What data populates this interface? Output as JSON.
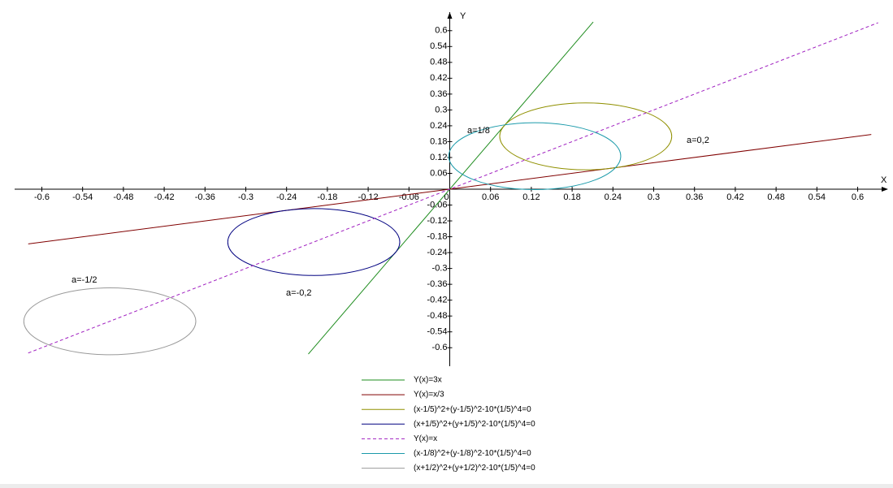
{
  "chart_data": {
    "type": "line",
    "x_label": "X",
    "y_label": "Y",
    "xlim": [
      -0.64,
      0.64
    ],
    "ylim": [
      -0.67,
      0.67
    ],
    "xticks": [
      -0.6,
      -0.54,
      -0.48,
      -0.42,
      -0.36,
      -0.3,
      -0.24,
      -0.18,
      -0.12,
      -0.06,
      0,
      0.06,
      0.12,
      0.18,
      0.24,
      0.3,
      0.36,
      0.42,
      0.48,
      0.54,
      0.6
    ],
    "yticks": [
      -0.6,
      -0.54,
      -0.48,
      -0.42,
      -0.36,
      -0.3,
      -0.24,
      -0.18,
      -0.12,
      -0.06,
      0.06,
      0.12,
      0.18,
      0.24,
      0.3,
      0.36,
      0.42,
      0.48,
      0.54,
      0.6
    ],
    "grid": false,
    "series": [
      {
        "name": "Y(x)=3x",
        "color": "#1e8c1e",
        "kind": "line",
        "x": [
          -0.208,
          0.211
        ],
        "values": [
          -0.624,
          0.633
        ]
      },
      {
        "name": "Y(x)=x/3",
        "color": "#800000",
        "kind": "line",
        "x": [
          -0.62,
          0.62
        ],
        "values": [
          -0.207,
          0.207
        ]
      },
      {
        "name": "(x-1/5)^2+(y-1/5)^2-10*(1/5)^4=0",
        "color": "#909000",
        "kind": "circle",
        "center": [
          0.2,
          0.2
        ],
        "r": 0.1265,
        "annotation": "a=0,2"
      },
      {
        "name": "(x+1/5)^2+(y+1/5)^2-10*(1/5)^4=0",
        "color": "#000080",
        "kind": "circle",
        "center": [
          -0.2,
          -0.2
        ],
        "r": 0.1265,
        "annotation": "a=-0,2"
      },
      {
        "name": "Y(x)=x",
        "color": "#a020c0",
        "kind": "line",
        "dashed": true,
        "x": [
          -0.62,
          0.63
        ],
        "values": [
          -0.62,
          0.63
        ]
      },
      {
        "name": "(x-1/8)^2+(y-1/8)^2-10*(1/5)^4=0",
        "color": "#1a9aaa",
        "kind": "circle",
        "center": [
          0.125,
          0.125
        ],
        "r": 0.1265,
        "annotation": "a=1/8"
      },
      {
        "name": "(x+1/2)^2+(y+1/2)^2-10*(1/5)^4=0",
        "color": "#999999",
        "kind": "circle",
        "center": [
          -0.5,
          -0.5
        ],
        "r": 0.1265,
        "annotation": "a=-1/2"
      }
    ]
  }
}
